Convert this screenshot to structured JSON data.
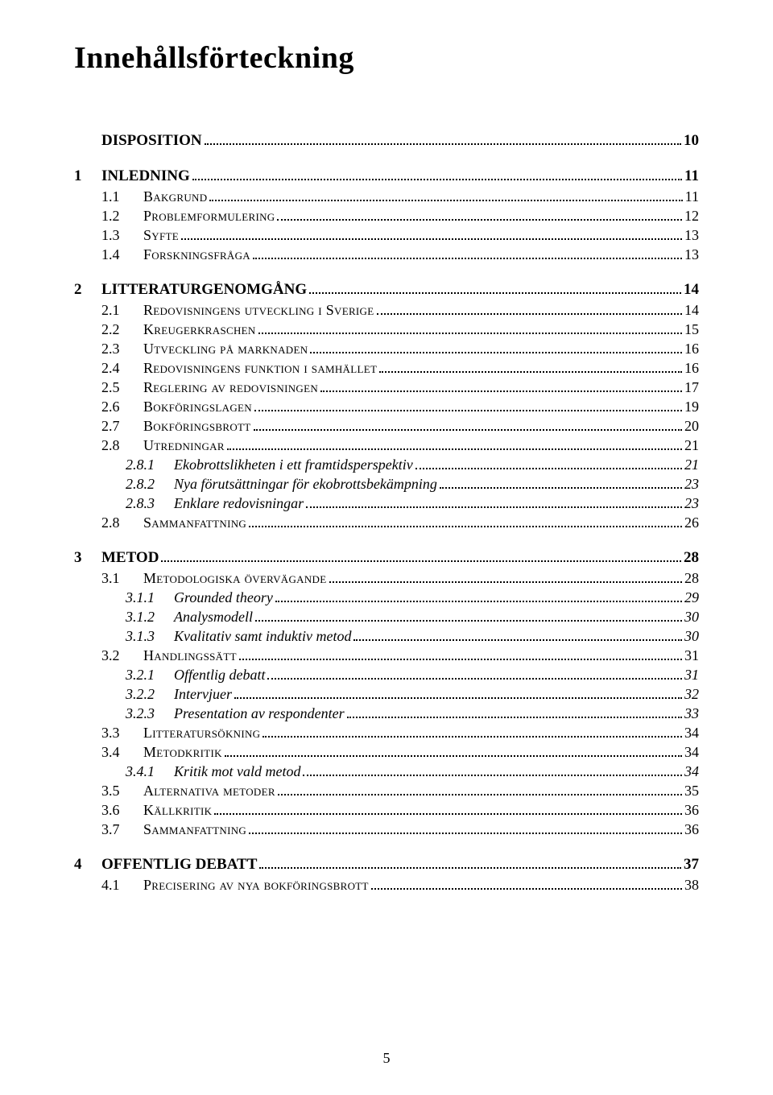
{
  "title": "Innehållsförteckning",
  "page_number": "5",
  "colors": {
    "text": "#000000",
    "background": "#ffffff"
  },
  "typography": {
    "title_fontsize": 38,
    "body_fontsize": 18,
    "font_family": "Palatino Linotype"
  },
  "toc": [
    {
      "level": 1,
      "num": "",
      "text": "DISPOSITION",
      "page": "10"
    },
    {
      "level": 1,
      "num": "1",
      "text": "INLEDNING",
      "page": "11"
    },
    {
      "level": 2,
      "num": "1.1",
      "text": "Bakgrund",
      "page": "11"
    },
    {
      "level": 2,
      "num": "1.2",
      "text": "Problemformulering",
      "page": "12"
    },
    {
      "level": 2,
      "num": "1.3",
      "text": "Syfte",
      "page": "13"
    },
    {
      "level": 2,
      "num": "1.4",
      "text": "Forskningsfråga",
      "page": "13"
    },
    {
      "level": 1,
      "num": "2",
      "text": "LITTERATURGENOMGÅNG",
      "page": "14"
    },
    {
      "level": 2,
      "num": "2.1",
      "text": "Redovisningens utveckling i Sverige",
      "page": "14"
    },
    {
      "level": 2,
      "num": "2.2",
      "text": "Kreugerkraschen",
      "page": "15"
    },
    {
      "level": 2,
      "num": "2.3",
      "text": "Utveckling på marknaden",
      "page": "16"
    },
    {
      "level": 2,
      "num": "2.4",
      "text": "Redovisningens funktion i samhället",
      "page": "16"
    },
    {
      "level": 2,
      "num": "2.5",
      "text": "Reglering av redovisningen",
      "page": "17"
    },
    {
      "level": 2,
      "num": "2.6",
      "text": "Bokföringslagen",
      "page": "19"
    },
    {
      "level": 2,
      "num": "2.7",
      "text": "Bokföringsbrott",
      "page": "20"
    },
    {
      "level": 2,
      "num": "2.8",
      "text": "Utredningar",
      "page": "21"
    },
    {
      "level": 3,
      "num": "2.8.1",
      "text": "Ekobrottslikheten i ett framtidsperspektiv",
      "page": "21"
    },
    {
      "level": 3,
      "num": "2.8.2",
      "text": "Nya förutsättningar för ekobrottsbekämpning",
      "page": "23"
    },
    {
      "level": 3,
      "num": "2.8.3",
      "text": "Enklare redovisningar",
      "page": "23"
    },
    {
      "level": 2,
      "num": "2.8",
      "text": "Sammanfattning",
      "page": "26"
    },
    {
      "level": 1,
      "num": "3",
      "text": "METOD",
      "page": "28"
    },
    {
      "level": 2,
      "num": "3.1",
      "text": "Metodologiska övervägande",
      "page": "28"
    },
    {
      "level": 3,
      "num": "3.1.1",
      "text": "Grounded theory",
      "page": "29"
    },
    {
      "level": 3,
      "num": "3.1.2",
      "text": "Analysmodell",
      "page": "30"
    },
    {
      "level": 3,
      "num": "3.1.3",
      "text": "Kvalitativ samt induktiv metod",
      "page": "30"
    },
    {
      "level": 2,
      "num": "3.2",
      "text": "Handlingssätt",
      "page": "31"
    },
    {
      "level": 3,
      "num": "3.2.1",
      "text": "Offentlig debatt",
      "page": "31"
    },
    {
      "level": 3,
      "num": "3.2.2",
      "text": "Intervjuer",
      "page": "32"
    },
    {
      "level": 3,
      "num": "3.2.3",
      "text": "Presentation av respondenter",
      "page": "33"
    },
    {
      "level": 2,
      "num": "3.3",
      "text": "Litteratursökning",
      "page": "34"
    },
    {
      "level": 2,
      "num": "3.4",
      "text": "Metodkritik",
      "page": "34"
    },
    {
      "level": 3,
      "num": "3.4.1",
      "text": "Kritik mot vald metod",
      "page": "34"
    },
    {
      "level": 2,
      "num": "3.5",
      "text": "Alternativa metoder",
      "page": "35"
    },
    {
      "level": 2,
      "num": "3.6",
      "text": "Källkritik",
      "page": "36"
    },
    {
      "level": 2,
      "num": "3.7",
      "text": "Sammanfattning",
      "page": "36"
    },
    {
      "level": 1,
      "num": "4",
      "text": "OFFENTLIG DEBATT",
      "page": "37"
    },
    {
      "level": 2,
      "num": "4.1",
      "text": "Precisering av nya bokföringsbrott",
      "page": "38"
    }
  ]
}
